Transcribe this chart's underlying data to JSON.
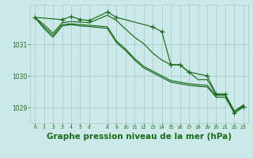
{
  "background_color": "#cce8e8",
  "grid_color": "#aacccc",
  "line_color": "#1a6b1a",
  "title": "Graphe pression niveau de la mer (hPa)",
  "title_fontsize": 7.5,
  "title_color": "#1a6b1a",
  "xlim": [
    -0.5,
    23.5
  ],
  "ylim": [
    1028.5,
    1032.25
  ],
  "yticks": [
    1029,
    1030,
    1031
  ],
  "xticks": [
    0,
    1,
    2,
    3,
    4,
    5,
    6,
    8,
    9,
    10,
    11,
    12,
    13,
    14,
    15,
    16,
    17,
    18,
    19,
    20,
    21,
    22,
    23
  ],
  "series1": {
    "x": [
      0,
      1,
      2,
      3,
      4,
      5,
      6,
      8,
      9,
      10,
      11,
      12,
      13,
      14,
      15,
      16,
      17,
      18,
      19,
      20,
      21,
      22,
      23
    ],
    "y": [
      1031.85,
      1031.62,
      1031.35,
      1031.68,
      1031.72,
      1031.7,
      1031.68,
      1031.92,
      1031.75,
      1031.48,
      1031.22,
      1031.02,
      1030.72,
      1030.5,
      1030.35,
      1030.35,
      1030.12,
      1029.88,
      1029.88,
      1029.42,
      1029.42,
      1028.88,
      1029.05
    ]
  },
  "series2": {
    "x": [
      0,
      1,
      2,
      3,
      4,
      5,
      6,
      8,
      9,
      10,
      11,
      12,
      13,
      14,
      15,
      16,
      17,
      18,
      19,
      20,
      21,
      22,
      23
    ],
    "y": [
      1031.85,
      1031.55,
      1031.28,
      1031.62,
      1031.65,
      1031.62,
      1031.6,
      1031.55,
      1031.1,
      1030.85,
      1030.55,
      1030.3,
      1030.15,
      1030.0,
      1029.85,
      1029.8,
      1029.75,
      1029.72,
      1029.7,
      1029.38,
      1029.38,
      1028.88,
      1029.08
    ]
  },
  "series3": {
    "x": [
      0,
      1,
      2,
      3,
      4,
      5,
      6,
      8,
      9,
      10,
      11,
      12,
      13,
      14,
      15,
      16,
      17,
      18,
      19,
      20,
      21,
      22,
      23
    ],
    "y": [
      1031.85,
      1031.5,
      1031.22,
      1031.58,
      1031.62,
      1031.58,
      1031.56,
      1031.5,
      1031.05,
      1030.8,
      1030.5,
      1030.25,
      1030.1,
      1029.95,
      1029.8,
      1029.75,
      1029.7,
      1029.67,
      1029.65,
      1029.32,
      1029.32,
      1028.82,
      1029.02
    ]
  },
  "series4": {
    "x": [
      0,
      3,
      4,
      5,
      6,
      8,
      9,
      13,
      14,
      15,
      16,
      17,
      19,
      20,
      21,
      22,
      23
    ],
    "y": [
      1031.85,
      1031.78,
      1031.88,
      1031.78,
      1031.75,
      1032.02,
      1031.85,
      1031.55,
      1031.4,
      1030.35,
      1030.35,
      1030.12,
      1030.0,
      1029.42,
      1029.42,
      1028.82,
      1029.02
    ]
  }
}
